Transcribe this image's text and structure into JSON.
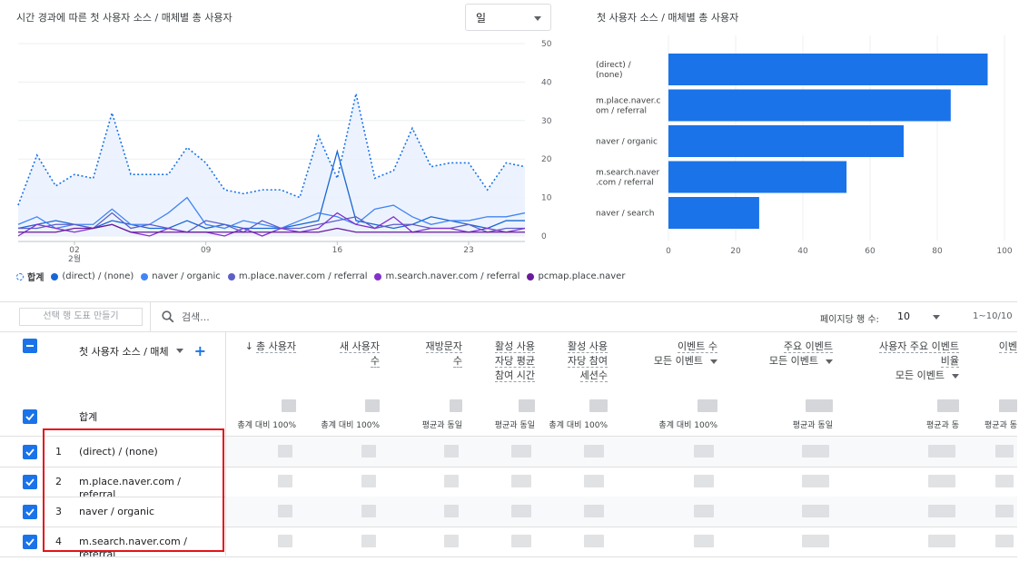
{
  "line_chart": {
    "title": "시간 경과에 따른 첫 사용자 소스 / 매체별 총 사용자",
    "granularity": "일",
    "y_ticks": [
      "50",
      "40",
      "30",
      "20",
      "10",
      "0"
    ],
    "x_ticks": [
      "02",
      "2월",
      "09",
      "16",
      "23"
    ],
    "legend": [
      {
        "label": "합계",
        "color": "#1a73e8",
        "style": "dashed-ring"
      },
      {
        "label": "(direct) / (none)",
        "color": "#1967d2"
      },
      {
        "label": "naver / organic",
        "color": "#4285f4"
      },
      {
        "label": "m.place.naver.com / referral",
        "color": "#5e5ec8"
      },
      {
        "label": "m.search.naver.com / referral",
        "color": "#8430ce"
      },
      {
        "label": "pcmap.place.naver",
        "color": "#6a1b9a"
      }
    ]
  },
  "chart_data": [
    {
      "type": "line",
      "title": "시간 경과에 따른 첫 사용자 소스 / 매체별 총 사용자",
      "ylim": [
        0,
        50
      ],
      "x": [
        1,
        2,
        3,
        4,
        5,
        6,
        7,
        8,
        9,
        10,
        11,
        12,
        13,
        14,
        15,
        16,
        17,
        18,
        19,
        20,
        21,
        22,
        23,
        24,
        25,
        26,
        27,
        28
      ],
      "series": [
        {
          "name": "합계",
          "values": [
            8,
            21,
            13,
            16,
            15,
            32,
            16,
            16,
            16,
            23,
            19,
            12,
            11,
            12,
            12,
            10,
            26,
            15,
            37,
            15,
            17,
            28,
            18,
            19,
            19,
            12,
            19,
            18
          ]
        },
        {
          "name": "(direct) / (none)",
          "values": [
            2,
            3,
            4,
            3,
            2,
            4,
            3,
            2,
            2,
            4,
            2,
            3,
            2,
            2,
            2,
            3,
            4,
            22,
            4,
            3,
            2,
            3,
            5,
            4,
            3,
            2,
            4,
            4
          ]
        },
        {
          "name": "naver / organic",
          "values": [
            3,
            5,
            2,
            3,
            3,
            7,
            3,
            3,
            6,
            10,
            3,
            2,
            4,
            3,
            2,
            4,
            6,
            5,
            3,
            7,
            8,
            5,
            3,
            4,
            4,
            5,
            5,
            6
          ]
        },
        {
          "name": "m.place.naver.com / referral",
          "values": [
            2,
            2,
            3,
            3,
            2,
            6,
            2,
            3,
            2,
            1,
            4,
            3,
            1,
            4,
            2,
            2,
            3,
            4,
            5,
            2,
            3,
            3,
            2,
            2,
            3,
            1,
            2,
            2
          ]
        },
        {
          "name": "m.search.naver.com / referral",
          "values": [
            0,
            3,
            2,
            1,
            2,
            3,
            1,
            0,
            2,
            1,
            1,
            0,
            2,
            0,
            2,
            1,
            2,
            6,
            3,
            2,
            5,
            1,
            2,
            2,
            1,
            2,
            1,
            2
          ]
        },
        {
          "name": "pcmap.place.naver",
          "values": [
            1,
            1,
            1,
            2,
            2,
            3,
            1,
            1,
            1,
            1,
            1,
            1,
            1,
            1,
            1,
            1,
            1,
            2,
            1,
            1,
            1,
            1,
            1,
            1,
            1,
            1,
            1,
            1
          ]
        }
      ]
    },
    {
      "type": "bar",
      "title": "첫 사용자 소스 / 매체별 총 사용자",
      "categories": [
        "(direct) / (none)",
        "m.place.naver.com / referral",
        "naver / organic",
        "m.search.naver.com / referral",
        "naver / search"
      ],
      "category_display": [
        "(direct) /|(none)",
        "m.place.naver.c|om / referral",
        "naver / organic",
        "m.search.naver|.com / referral",
        "naver / search"
      ],
      "values": [
        95,
        84,
        70,
        53,
        27
      ],
      "xlim": [
        0,
        100
      ],
      "x_ticks": [
        "0",
        "20",
        "40",
        "60",
        "80",
        "100"
      ],
      "color": "#1a73e8"
    }
  ],
  "bar_chart": {
    "title": "첫 사용자 소스 / 매체별 총 사용자"
  },
  "toolbar": {
    "pivot_button": "선택 행 도표 만들기",
    "search_placeholder": "검색...",
    "rows_per_page_label": "페이지당 행 수:",
    "rows_per_page_value": "10",
    "pagination": "1~10/10"
  },
  "table": {
    "dimension_header": "첫 사용자 소스 / 매체",
    "columns": [
      {
        "label": "총 사용자",
        "sorted": true,
        "sub": "",
        "baseline": "총계 대비 100%"
      },
      {
        "label": "새 사용자|수",
        "sub": "",
        "baseline": "총계 대비 100%"
      },
      {
        "label": "재방문자|수",
        "sub": "",
        "baseline": "평균과 동일"
      },
      {
        "label": "활성 사용|자당 평균|참여 시간",
        "sub": "",
        "baseline": "평균과 동일"
      },
      {
        "label": "활성 사용|자당 참여|세션수",
        "sub": "",
        "baseline": "총계 대비 100%"
      },
      {
        "label": "이벤트 수",
        "sub": "모든 이벤트",
        "baseline": "총계 대비 100%"
      },
      {
        "label": "주요 이벤트",
        "sub": "모든 이벤트",
        "baseline": "평균과 동일"
      },
      {
        "label": "사용자 주요 이벤트|비율",
        "sub": "모든 이벤트",
        "baseline": "평균과 동"
      },
      {
        "label": "이벤",
        "sub": "",
        "baseline": "평균과 동"
      }
    ],
    "total_label": "합계",
    "rows": [
      {
        "idx": "1",
        "name": "(direct) / (none)"
      },
      {
        "idx": "2",
        "name": "m.place.naver.com / referral"
      },
      {
        "idx": "3",
        "name": "naver / organic"
      },
      {
        "idx": "4",
        "name": "m.search.naver.com / referral"
      }
    ]
  }
}
